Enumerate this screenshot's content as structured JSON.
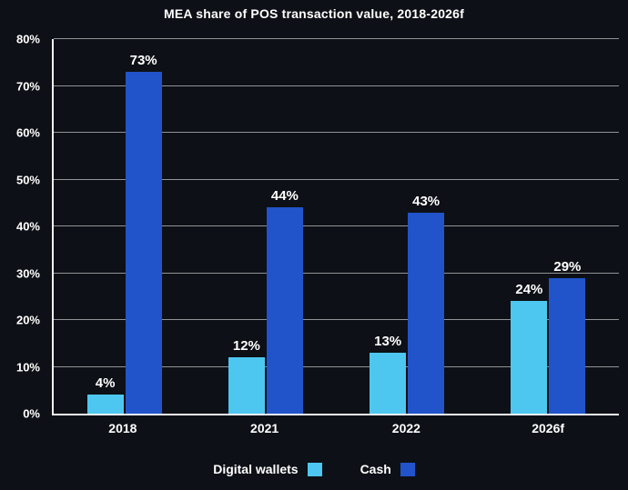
{
  "title": "MEA share of POS transaction value, 2018-2026f",
  "colors": {
    "background": "#0d1016",
    "digital_wallets": "#4dc7f0",
    "cash": "#2154cb",
    "axis": "#f2f4f6",
    "gridline": "rgba(255,255,255,0.55)",
    "text": "#ffffff"
  },
  "chart_data": {
    "type": "bar",
    "title": "MEA share of POS transaction value, 2018-2026f",
    "categories": [
      "2018",
      "2021",
      "2022",
      "2026f"
    ],
    "series": [
      {
        "name": "Digital wallets",
        "color": "#4dc7f0",
        "values": [
          4,
          12,
          13,
          24
        ]
      },
      {
        "name": "Cash",
        "color": "#2154cb",
        "values": [
          73,
          44,
          43,
          29
        ]
      }
    ],
    "data_labels": [
      [
        "4%",
        "12%",
        "13%",
        "24%"
      ],
      [
        "73%",
        "44%",
        "43%",
        "29%"
      ]
    ],
    "xlabel": "",
    "ylabel": "",
    "ylim": [
      0,
      80
    ],
    "ytick_step": 10,
    "ytick_labels": [
      "0%",
      "10%",
      "20%",
      "30%",
      "40%",
      "50%",
      "60%",
      "70%",
      "80%"
    ],
    "grid": true,
    "legend_position": "bottom"
  }
}
